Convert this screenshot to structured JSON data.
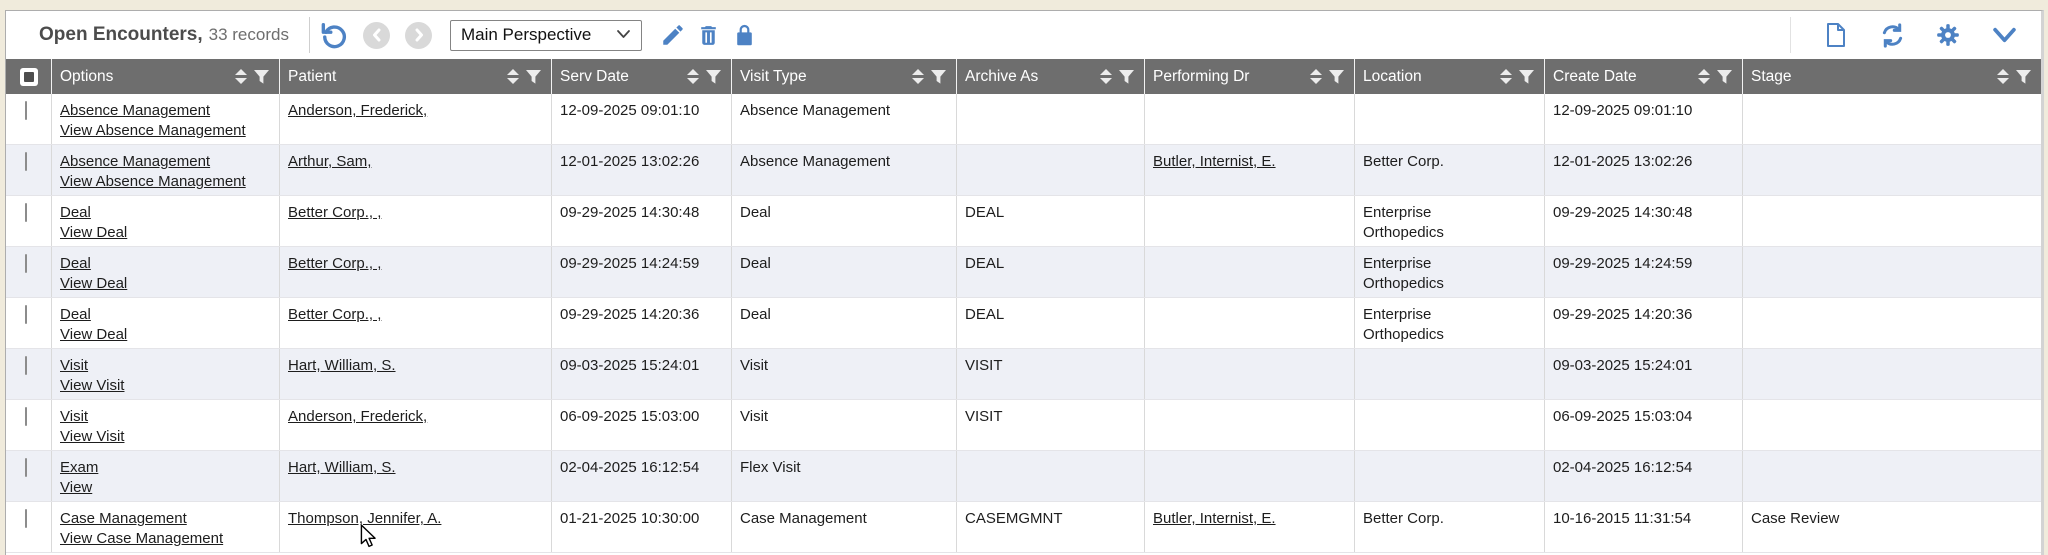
{
  "app": {
    "accent_color": "#4d82c4",
    "header_bg": "#6e6e6e",
    "alt_row_bg": "#eef0f6"
  },
  "toolbar": {
    "title": "Open Encounters,",
    "record_count": "33 records",
    "perspective_selected": "Main Perspective",
    "left_icons": [
      "undo-icon",
      "nav-back-icon",
      "nav-forward-icon",
      "edit-pencil-icon",
      "delete-trash-icon",
      "lock-icon"
    ],
    "right_icons": [
      "new-document-icon",
      "refresh-icon",
      "settings-gear-icon",
      "chevron-down-icon"
    ]
  },
  "table": {
    "columns": [
      {
        "label": "Options"
      },
      {
        "label": "Patient"
      },
      {
        "label": "Serv Date"
      },
      {
        "label": "Visit Type"
      },
      {
        "label": "Archive As"
      },
      {
        "label": "Performing Dr"
      },
      {
        "label": "Location"
      },
      {
        "label": "Create Date"
      },
      {
        "label": "Stage"
      }
    ],
    "rows": [
      {
        "option_action": "Absence Management",
        "option_view": "View Absence Management",
        "patient": "Anderson, Frederick,",
        "serv_date": "12-09-2025 09:01:10",
        "visit_type": "Absence Management",
        "archive_as": "",
        "performing_dr": "",
        "location": "",
        "create_date": "12-09-2025 09:01:10",
        "stage": ""
      },
      {
        "option_action": "Absence Management",
        "option_view": "View Absence Management",
        "patient": "Arthur, Sam,",
        "serv_date": "12-01-2025 13:02:26",
        "visit_type": "Absence Management",
        "archive_as": "",
        "performing_dr": "Butler, Internist, E.",
        "location": "Better Corp.",
        "create_date": "12-01-2025 13:02:26",
        "stage": ""
      },
      {
        "option_action": "Deal",
        "option_view": "View Deal",
        "patient": "Better Corp., ,",
        "serv_date": "09-29-2025 14:30:48",
        "visit_type": "Deal",
        "archive_as": "DEAL",
        "performing_dr": "",
        "location": "Enterprise Orthopedics",
        "create_date": "09-29-2025 14:30:48",
        "stage": ""
      },
      {
        "option_action": "Deal",
        "option_view": "View Deal",
        "patient": "Better Corp., ,",
        "serv_date": "09-29-2025 14:24:59",
        "visit_type": "Deal",
        "archive_as": "DEAL",
        "performing_dr": "",
        "location": "Enterprise Orthopedics",
        "create_date": "09-29-2025 14:24:59",
        "stage": ""
      },
      {
        "option_action": "Deal",
        "option_view": "View Deal",
        "patient": "Better Corp., ,",
        "serv_date": "09-29-2025 14:20:36",
        "visit_type": "Deal",
        "archive_as": "DEAL",
        "performing_dr": "",
        "location": "Enterprise Orthopedics",
        "create_date": "09-29-2025 14:20:36",
        "stage": ""
      },
      {
        "option_action": "Visit",
        "option_view": "View Visit",
        "patient": "Hart, William, S.",
        "serv_date": "09-03-2025 15:24:01",
        "visit_type": "Visit",
        "archive_as": "VISIT",
        "performing_dr": "",
        "location": "",
        "create_date": "09-03-2025 15:24:01",
        "stage": ""
      },
      {
        "option_action": "Visit",
        "option_view": "View Visit",
        "patient": "Anderson, Frederick,",
        "serv_date": "06-09-2025 15:03:00",
        "visit_type": "Visit",
        "archive_as": "VISIT",
        "performing_dr": "",
        "location": "",
        "create_date": "06-09-2025 15:03:04",
        "stage": ""
      },
      {
        "option_action": "Exam",
        "option_view": "View",
        "patient": "Hart, William, S.",
        "serv_date": "02-04-2025 16:12:54",
        "visit_type": "Flex Visit",
        "archive_as": "",
        "performing_dr": "",
        "location": "",
        "create_date": "02-04-2025 16:12:54",
        "stage": ""
      },
      {
        "option_action": "Case Management",
        "option_view": "View Case Management",
        "patient": "Thompson, Jennifer, A.",
        "serv_date": "01-21-2025 10:30:00",
        "visit_type": "Case Management",
        "archive_as": "CASEMGMNT",
        "performing_dr": "Butler, Internist, E.",
        "location": "Better Corp.",
        "create_date": "10-16-2015 11:31:54",
        "stage": "Case Review"
      }
    ]
  }
}
